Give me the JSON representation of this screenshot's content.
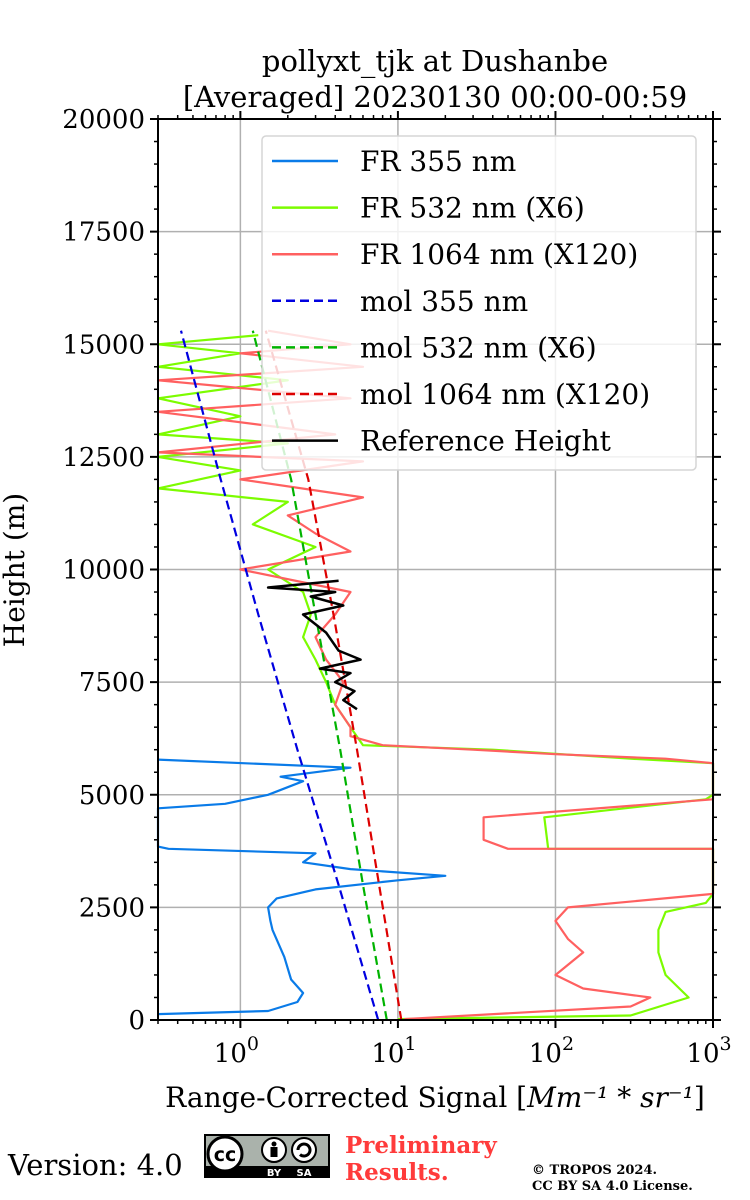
{
  "chart_data": {
    "type": "line",
    "title": [
      "pollyxt_tjk at Dushanbe",
      "[Averaged] 20230130 00:00-00:59"
    ],
    "xlabel": "Range-Corrected Signal [",
    "xlabel_unit": "Mm⁻¹ * sr⁻¹",
    "xlabel_close": "]",
    "ylabel": "Height (m)",
    "xscale": "log",
    "xlim": [
      0.3,
      1000
    ],
    "ylim": [
      0,
      20000
    ],
    "x_ticks": [
      {
        "value": 1,
        "base": "10",
        "exp": "0"
      },
      {
        "value": 10,
        "base": "10",
        "exp": "1"
      },
      {
        "value": 100,
        "base": "10",
        "exp": "2"
      },
      {
        "value": 1000,
        "base": "10",
        "exp": "3"
      }
    ],
    "y_ticks": [
      0,
      2500,
      5000,
      7500,
      10000,
      12500,
      15000,
      17500,
      20000
    ],
    "grid": true,
    "legend_position": "top-right",
    "series": [
      {
        "name": "FR 355 nm",
        "color": "#0a7be8",
        "style": "solid",
        "points": [
          [
            0.3,
            130
          ],
          [
            1.5,
            200
          ],
          [
            2.3,
            400
          ],
          [
            2.5,
            600
          ],
          [
            2.1,
            900
          ],
          [
            1.9,
            1400
          ],
          [
            1.6,
            2000
          ],
          [
            1.55,
            2200
          ],
          [
            1.5,
            2500
          ],
          [
            1.7,
            2700
          ],
          [
            3,
            2900
          ],
          [
            10,
            3100
          ],
          [
            20,
            3200
          ],
          [
            5,
            3350
          ],
          [
            2.5,
            3500
          ],
          [
            3,
            3700
          ],
          [
            0.35,
            3800
          ],
          [
            0.3,
            3850
          ],
          [
            0.3,
            4700
          ],
          [
            0.8,
            4800
          ],
          [
            1.5,
            5000
          ],
          [
            2.5,
            5300
          ],
          [
            1.8,
            5400
          ],
          [
            5,
            5600
          ],
          [
            0.3,
            5780
          ]
        ]
      },
      {
        "name": "FR 532 nm (X6)",
        "color": "#7cfc00",
        "style": "solid",
        "points": [
          [
            10,
            20
          ],
          [
            300,
            100
          ],
          [
            700,
            500
          ],
          [
            500,
            1000
          ],
          [
            450,
            1500
          ],
          [
            450,
            2000
          ],
          [
            500,
            2400
          ],
          [
            900,
            2600
          ],
          [
            1000,
            2800
          ],
          [
            1000,
            3800
          ],
          [
            90,
            3800
          ],
          [
            85,
            4500
          ],
          [
            900,
            4900
          ],
          [
            1000,
            5000
          ],
          [
            1000,
            5700
          ],
          [
            300,
            5800
          ],
          [
            40,
            6000
          ],
          [
            6,
            6100
          ],
          [
            5,
            6500
          ],
          [
            4,
            7000
          ],
          [
            3.5,
            7500
          ],
          [
            3,
            8000
          ],
          [
            2.5,
            8500
          ],
          [
            2.8,
            9000
          ],
          [
            2.5,
            9500
          ],
          [
            1.5,
            10000
          ],
          [
            3,
            10500
          ],
          [
            1.2,
            11000
          ],
          [
            2,
            11500
          ],
          [
            0.3,
            11800
          ],
          [
            1,
            12200
          ],
          [
            0.3,
            12500
          ],
          [
            2,
            12800
          ],
          [
            0.3,
            13000
          ],
          [
            1,
            13400
          ],
          [
            0.3,
            13800
          ],
          [
            2,
            14200
          ],
          [
            0.3,
            14500
          ],
          [
            1,
            14800
          ],
          [
            0.3,
            15000
          ],
          [
            1.3,
            15200
          ]
        ]
      },
      {
        "name": "FR 1064 nm (X120)",
        "color": "#ff6060",
        "style": "solid",
        "points": [
          [
            11,
            20
          ],
          [
            300,
            300
          ],
          [
            400,
            500
          ],
          [
            150,
            700
          ],
          [
            100,
            1000
          ],
          [
            150,
            1500
          ],
          [
            120,
            1800
          ],
          [
            100,
            2200
          ],
          [
            120,
            2500
          ],
          [
            1000,
            2800
          ],
          [
            1000,
            3800
          ],
          [
            50,
            3800
          ],
          [
            35,
            4000
          ],
          [
            35,
            4500
          ],
          [
            1000,
            4900
          ],
          [
            1000,
            5700
          ],
          [
            500,
            5800
          ],
          [
            100,
            5900
          ],
          [
            30,
            6000
          ],
          [
            8,
            6100
          ],
          [
            5,
            6300
          ],
          [
            5,
            6500
          ],
          [
            4,
            7000
          ],
          [
            4.5,
            7500
          ],
          [
            3.5,
            8000
          ],
          [
            3,
            8500
          ],
          [
            4,
            9000
          ],
          [
            5,
            9500
          ],
          [
            1,
            10000
          ],
          [
            5,
            10400
          ],
          [
            3,
            10800
          ],
          [
            2,
            11200
          ],
          [
            6,
            11600
          ],
          [
            1,
            12000
          ],
          [
            6,
            12400
          ],
          [
            0.3,
            12600
          ],
          [
            4,
            13000
          ],
          [
            0.3,
            13500
          ],
          [
            5,
            13800
          ],
          [
            0.3,
            14200
          ],
          [
            6,
            14500
          ],
          [
            1,
            14800
          ],
          [
            5,
            15000
          ],
          [
            1.5,
            15300
          ]
        ]
      },
      {
        "name": "mol 355 nm",
        "color": "#0000e0",
        "style": "dashed",
        "points": [
          [
            7.5,
            0
          ],
          [
            4.2,
            3000
          ],
          [
            2.3,
            6000
          ],
          [
            1.3,
            9000
          ],
          [
            0.75,
            12000
          ],
          [
            0.42,
            15300
          ]
        ]
      },
      {
        "name": "mol 532 nm (X6)",
        "color": "#00b300",
        "style": "dashed",
        "points": [
          [
            8.5,
            0
          ],
          [
            6,
            3000
          ],
          [
            4.3,
            6000
          ],
          [
            3,
            9000
          ],
          [
            2.1,
            12000
          ],
          [
            1.2,
            15300
          ]
        ]
      },
      {
        "name": "mol 1064 nm (X120)",
        "color": "#dd0000",
        "style": "dashed",
        "points": [
          [
            10.5,
            0
          ],
          [
            7.6,
            3000
          ],
          [
            5.5,
            6000
          ],
          [
            3.9,
            9000
          ],
          [
            2.7,
            12000
          ],
          [
            1.45,
            15300
          ]
        ]
      },
      {
        "name": "Reference Height",
        "color": "#000000",
        "style": "solid",
        "points": [
          [
            5.5,
            6900
          ],
          [
            4.5,
            7100
          ],
          [
            5.3,
            7300
          ],
          [
            4,
            7500
          ],
          [
            5,
            7700
          ],
          [
            3.2,
            7800
          ],
          [
            5.8,
            8000
          ],
          [
            4.2,
            8200
          ],
          [
            3.5,
            8600
          ],
          [
            2.5,
            9000
          ],
          [
            4.5,
            9200
          ],
          [
            2.8,
            9400
          ],
          [
            4,
            9500
          ],
          [
            1.5,
            9600
          ],
          [
            4.2,
            9750
          ]
        ]
      }
    ]
  },
  "footer": {
    "version": "Version: 4.0",
    "preliminary_line1": "Preliminary",
    "preliminary_line2": "Results.",
    "copyright_line1": "© TROPOS 2024.",
    "copyright_line2": "CC BY SA 4.0 License.",
    "license_badge": [
      "cc",
      "BY",
      "SA"
    ]
  }
}
